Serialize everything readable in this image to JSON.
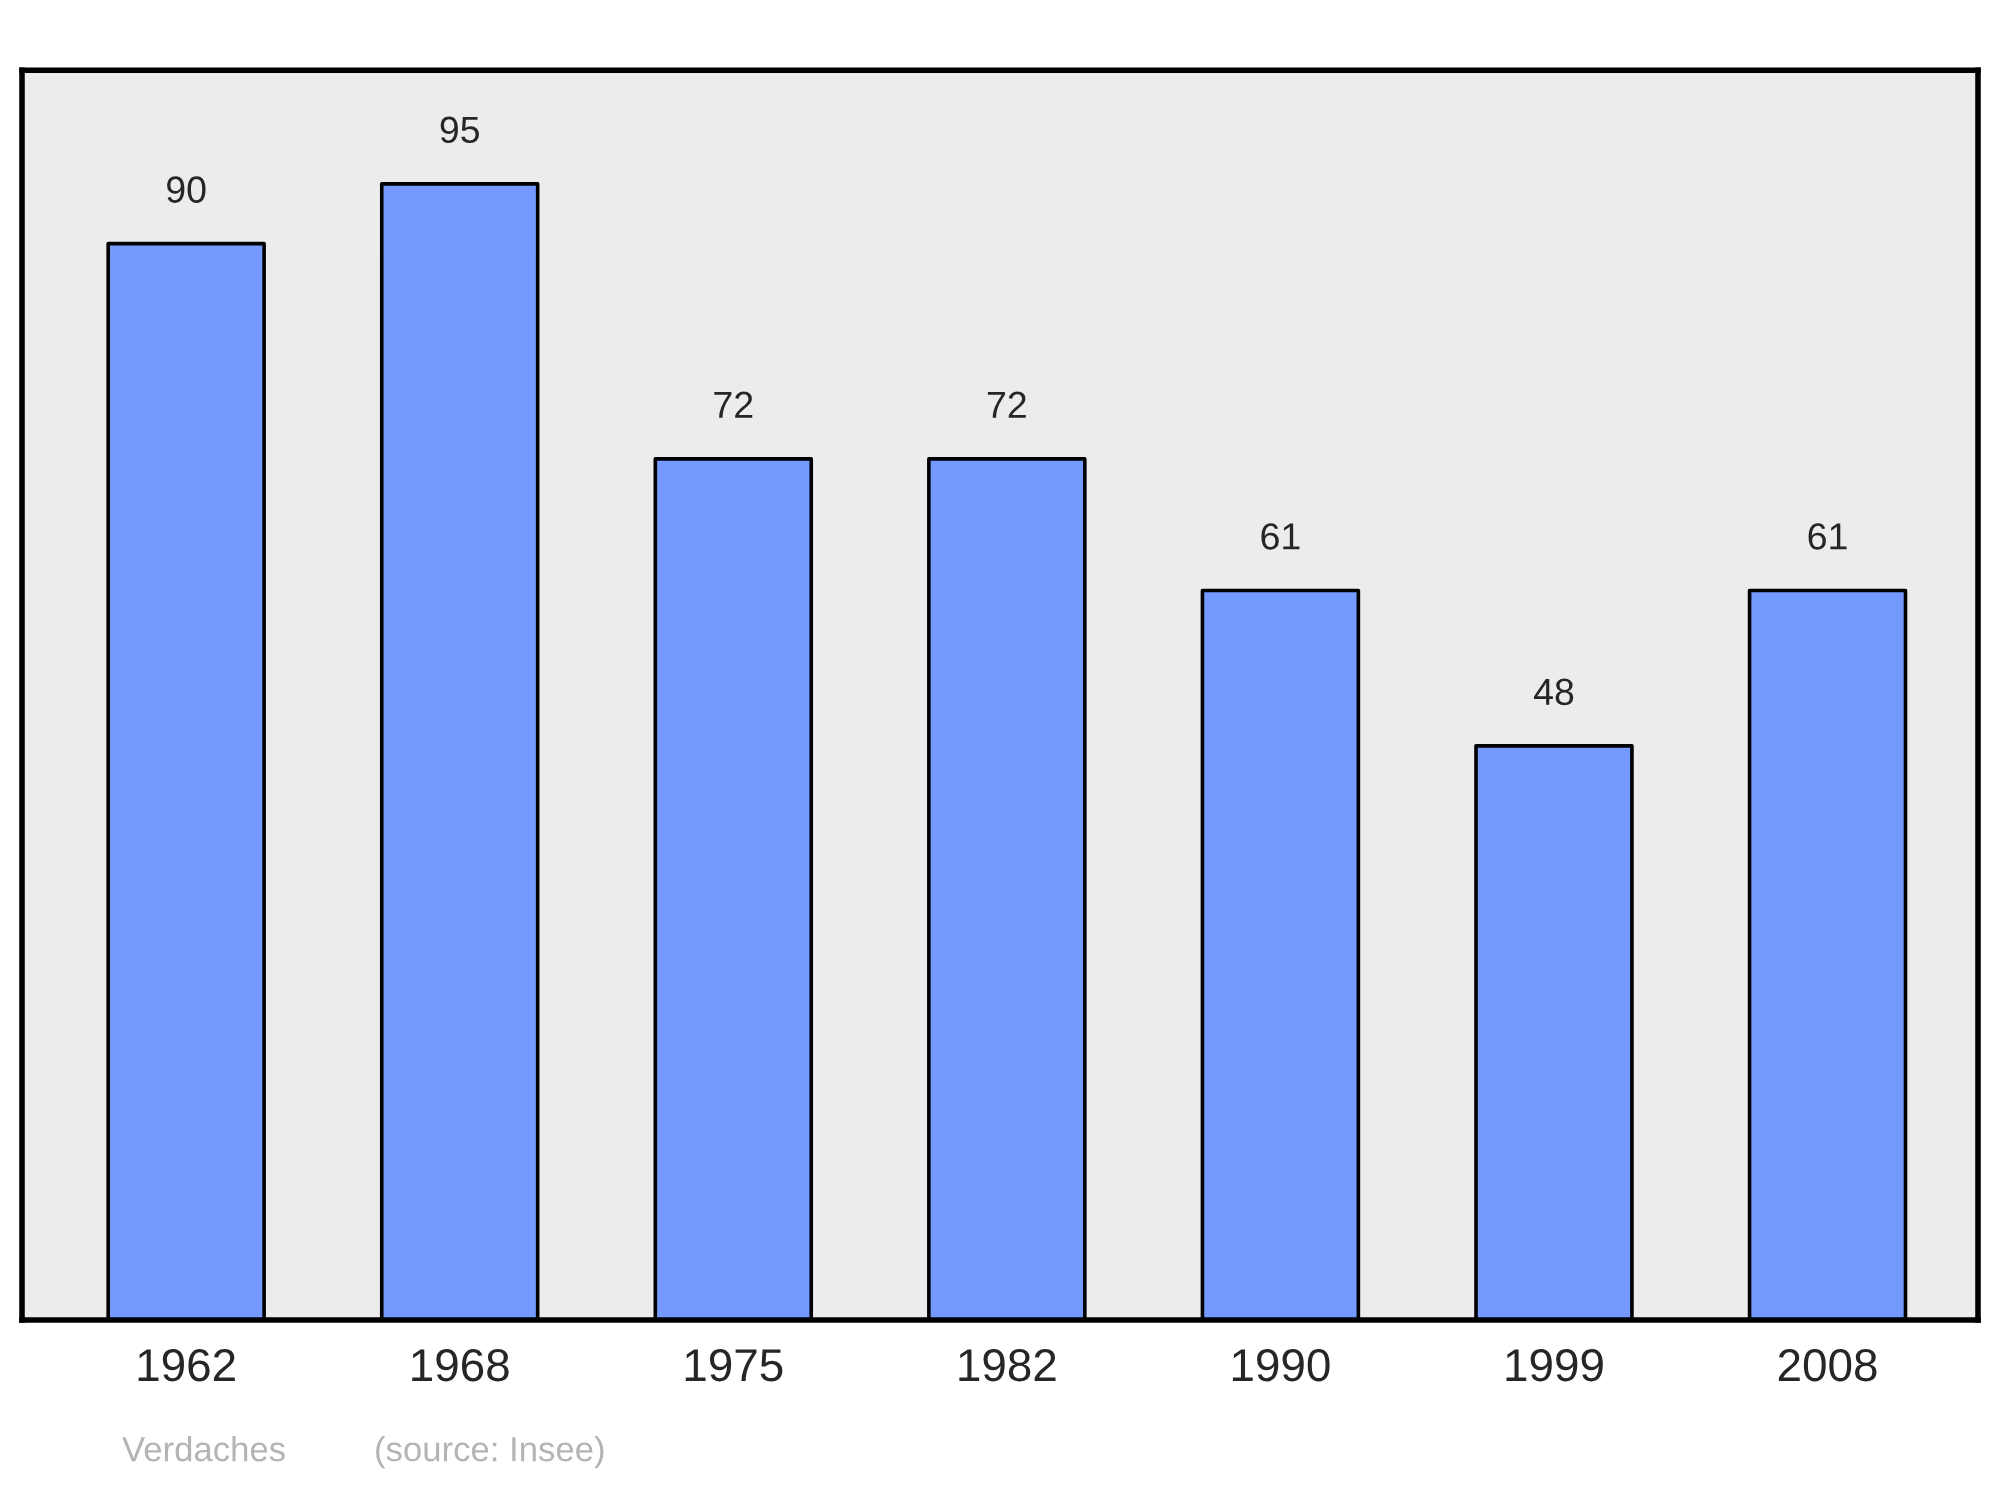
{
  "chart_data": {
    "type": "bar",
    "categories": [
      "1962",
      "1968",
      "1975",
      "1982",
      "1990",
      "1999",
      "2008"
    ],
    "values": [
      90,
      95,
      72,
      72,
      61,
      48,
      61
    ],
    "color": "#7499ff",
    "ylim": [
      0,
      104.5
    ],
    "tick_labels": "x",
    "data_labels": true,
    "grid": false,
    "legend": false,
    "annotations": [
      "Verdaches",
      "(source: Insee)"
    ]
  }
}
